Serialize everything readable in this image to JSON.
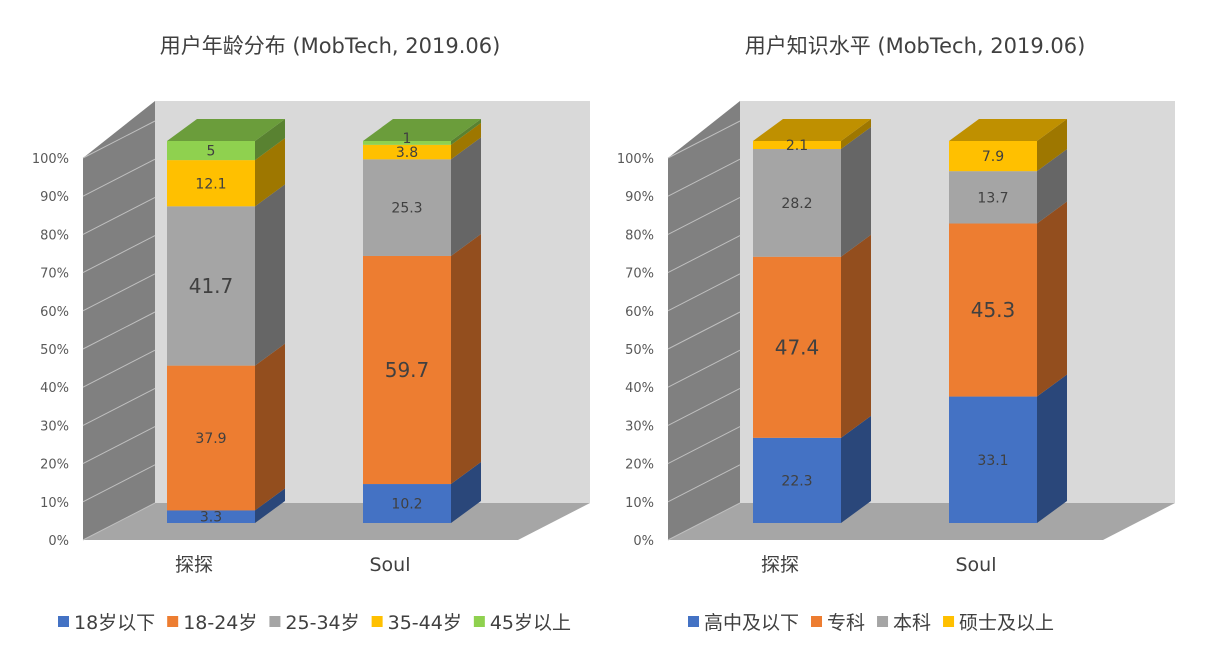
{
  "chart_data": [
    {
      "type": "bar",
      "stacked": true,
      "three_d": true,
      "title": "用户年龄分布 (MobTech, 2019.06)",
      "categories": [
        "探探",
        "Soul"
      ],
      "series": [
        {
          "name": "18岁以下",
          "color": "#4472C4",
          "values": [
            3.3,
            10.2
          ]
        },
        {
          "name": "18-24岁",
          "color": "#ED7D31",
          "values": [
            37.9,
            59.7
          ]
        },
        {
          "name": "25-34岁",
          "color": "#A5A5A5",
          "values": [
            41.7,
            25.3
          ]
        },
        {
          "name": "35-44岁",
          "color": "#FFC000",
          "values": [
            12.1,
            3.8
          ]
        },
        {
          "name": "45岁以上",
          "color": "#8FD14F",
          "values": [
            5,
            1
          ]
        }
      ],
      "yticks": [
        "0%",
        "10%",
        "20%",
        "30%",
        "40%",
        "50%",
        "60%",
        "70%",
        "80%",
        "90%",
        "100%"
      ],
      "ylim": [
        0,
        100
      ],
      "legend_position": "bottom"
    },
    {
      "type": "bar",
      "stacked": true,
      "three_d": true,
      "title": "用户知识水平 (MobTech, 2019.06)",
      "categories": [
        "探探",
        "Soul"
      ],
      "series": [
        {
          "name": "高中及以下",
          "color": "#4472C4",
          "values": [
            22.3,
            33.1
          ]
        },
        {
          "name": "专科",
          "color": "#ED7D31",
          "values": [
            47.4,
            45.3
          ]
        },
        {
          "name": "本科",
          "color": "#A5A5A5",
          "values": [
            28.2,
            13.7
          ]
        },
        {
          "name": "硕士及以上",
          "color": "#FFC000",
          "values": [
            2.1,
            7.9
          ]
        }
      ],
      "yticks": [
        "0%",
        "10%",
        "20%",
        "30%",
        "40%",
        "50%",
        "60%",
        "70%",
        "80%",
        "90%",
        "100%"
      ],
      "ylim": [
        0,
        100
      ],
      "legend_position": "bottom"
    }
  ]
}
